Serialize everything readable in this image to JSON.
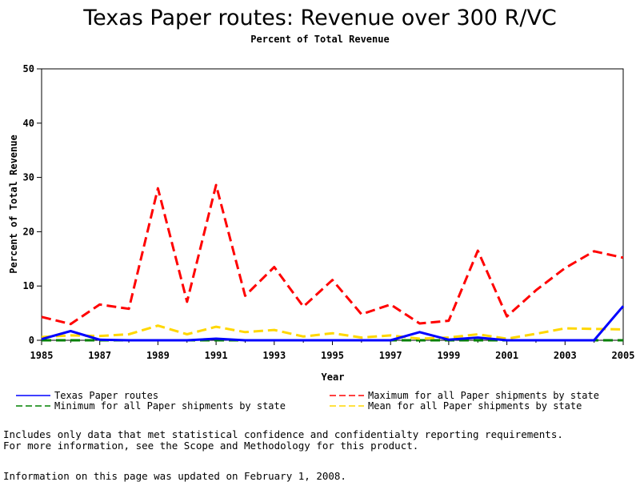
{
  "chart_data": {
    "type": "line",
    "title": "Texas Paper routes: Revenue over 300 R/VC",
    "subtitle": "Percent of Total Revenue",
    "xlabel": "Year",
    "ylabel": "Percent of Total Revenue",
    "xlim": [
      1985,
      2005
    ],
    "ylim": [
      0,
      50
    ],
    "x_ticks": [
      "1985",
      "1987",
      "1989",
      "1991",
      "1993",
      "1995",
      "1997",
      "1999",
      "2001",
      "2003",
      "2005"
    ],
    "y_ticks": [
      "0",
      "10",
      "20",
      "30",
      "40",
      "50"
    ],
    "grid": false,
    "legend_position": "bottom",
    "x": [
      1985,
      1986,
      1987,
      1988,
      1989,
      1990,
      1991,
      1992,
      1993,
      1994,
      1995,
      1996,
      1997,
      1998,
      1999,
      2000,
      2001,
      2002,
      2003,
      2004,
      2005
    ],
    "series": [
      {
        "name": "Texas Paper routes",
        "color": "#0000ff",
        "dash": "solid",
        "values": [
          0.2,
          1.7,
          0.1,
          0.0,
          0.0,
          0.0,
          0.3,
          0.0,
          0.0,
          0.0,
          0.0,
          0.0,
          0.0,
          1.5,
          0.1,
          0.5,
          0.0,
          0.0,
          0.0,
          0.0,
          6.3
        ]
      },
      {
        "name": "Maximum for all Paper shipments by state",
        "color": "#ff0000",
        "dash": "dashed",
        "values": [
          4.3,
          3.0,
          6.6,
          5.8,
          28.0,
          7.1,
          28.6,
          8.2,
          13.5,
          6.2,
          11.1,
          4.8,
          6.6,
          3.1,
          3.6,
          16.5,
          4.4,
          9.2,
          13.3,
          16.4,
          15.2
        ]
      },
      {
        "name": "Minimum for all Paper shipments by state",
        "color": "#008000",
        "dash": "dashed",
        "values": [
          0.0,
          0.0,
          0.0,
          0.0,
          0.0,
          0.0,
          0.0,
          0.0,
          0.0,
          0.0,
          0.0,
          0.0,
          0.0,
          0.0,
          0.0,
          0.0,
          0.0,
          0.0,
          0.0,
          0.0,
          0.0
        ]
      },
      {
        "name": "Mean for all Paper shipments by state",
        "color": "#ffd700",
        "dash": "dashed",
        "values": [
          0.6,
          0.9,
          0.8,
          1.1,
          2.7,
          1.1,
          2.5,
          1.5,
          1.9,
          0.7,
          1.3,
          0.5,
          0.9,
          0.3,
          0.5,
          1.1,
          0.3,
          1.2,
          2.2,
          2.1,
          2.0
        ]
      }
    ]
  },
  "footnotes": {
    "line1": "Includes only data that met statistical confidence and confidentialty reporting requirements.",
    "line2": "For more information, see the Scope and Methodology for this product.",
    "updated": "Information on this page was updated on February 1, 2008."
  }
}
